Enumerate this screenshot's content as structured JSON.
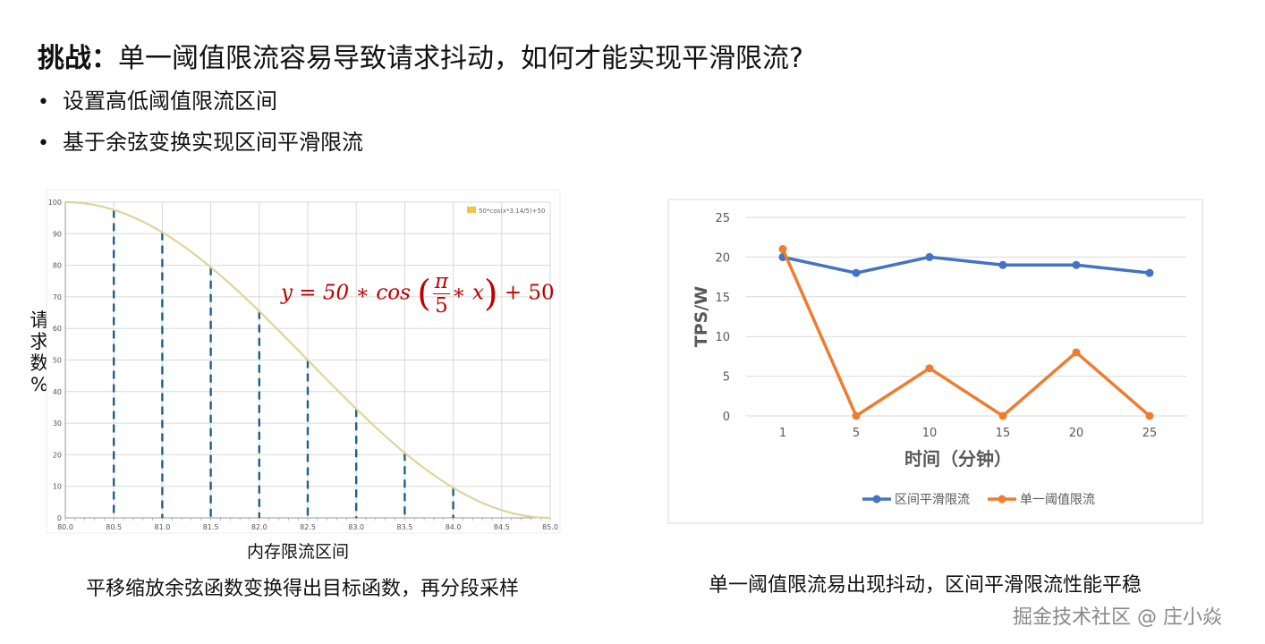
{
  "header": {
    "title_bold": "挑战：",
    "title_rest": "单一阈值限流容易导致请求抖动，如何才能实现平滑限流?"
  },
  "bullets": [
    "设置高低阈值限流区间",
    "基于余弦变换实现区间平滑限流"
  ],
  "captions": {
    "left": "平移缩放余弦函数变换得出目标函数，再分段采样",
    "right": "单一阈值限流易出现抖动，区间平滑限流性能平稳"
  },
  "watermark": "掘金技术社区 @ 庄小焱",
  "colors": {
    "curve": "#dcd59a",
    "dashes": "#1f5f8b",
    "blue": "#4472c4",
    "orange": "#ed7d31",
    "formula": "#c00000",
    "grid": "#d9d9d9"
  },
  "chart_data": [
    {
      "type": "line",
      "ylabel_chars": [
        "请",
        "求",
        "数",
        "%"
      ],
      "xlabel": "内存限流区间",
      "legend": "50*cos(x*3.14/5)+50",
      "legend_position": "top-right",
      "formula": {
        "lhs": "y = 50 ∗ cos",
        "num": "π",
        "den": "5",
        "inner": "∗ x",
        "rhs": "+ 50"
      },
      "xlim": [
        80.0,
        85.0
      ],
      "ylim": [
        0,
        100
      ],
      "xticks": [
        "80.0",
        "80.5",
        "81.0",
        "81.5",
        "82.0",
        "82.5",
        "83.0",
        "83.5",
        "84.0",
        "84.5",
        "85.0"
      ],
      "yticks": [
        "0",
        "10",
        "20",
        "30",
        "40",
        "50",
        "60",
        "70",
        "80",
        "90",
        "100"
      ],
      "curve": {
        "x0": 80,
        "amplitude": 50,
        "offset": 50,
        "period_divisor": 5
      },
      "samples": [
        {
          "x": 80.5,
          "y": 97.6
        },
        {
          "x": 81.0,
          "y": 90.5
        },
        {
          "x": 81.5,
          "y": 79.4
        },
        {
          "x": 82.0,
          "y": 65.5
        },
        {
          "x": 82.5,
          "y": 50.0
        },
        {
          "x": 83.0,
          "y": 34.5
        },
        {
          "x": 83.5,
          "y": 20.6
        },
        {
          "x": 84.0,
          "y": 9.5
        }
      ],
      "grid": true
    },
    {
      "type": "line",
      "ylabel": "TPS/W",
      "xlabel": "时间（分钟）",
      "categories": [
        "1",
        "5",
        "10",
        "15",
        "20",
        "25"
      ],
      "yticks": [
        "0",
        "5",
        "10",
        "15",
        "20",
        "25"
      ],
      "ylim": [
        0,
        25
      ],
      "legend_position": "bottom",
      "series": [
        {
          "name": "区间平滑限流",
          "values": [
            20,
            18,
            20,
            19,
            19,
            18
          ],
          "color": "#4472c4"
        },
        {
          "name": "单一阈值限流",
          "values": [
            21,
            0,
            6,
            0,
            8,
            0
          ],
          "color": "#ed7d31"
        }
      ],
      "grid": true
    }
  ]
}
